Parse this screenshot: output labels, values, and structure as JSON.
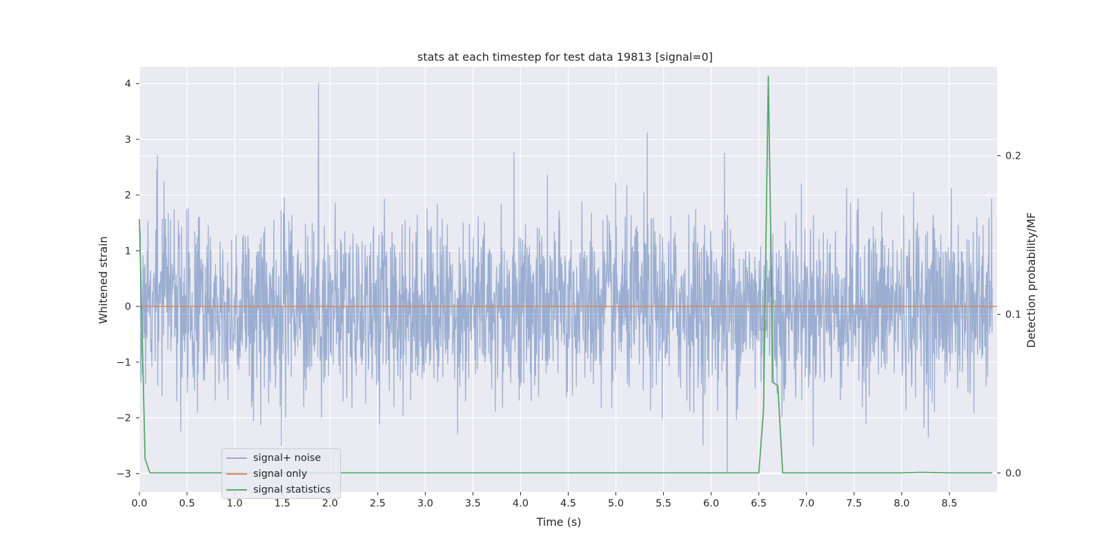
{
  "chart_data": {
    "type": "line",
    "title": "stats at each timestep for test data 19813 [signal=0]",
    "xlabel": "Time (s)",
    "ylabel": "Whitened strain",
    "y2label": "Detection probability/MF",
    "xlim": [
      0.0,
      9.0
    ],
    "ylim": [
      -3.33,
      4.3
    ],
    "y2lim": [
      -0.012,
      0.256
    ],
    "xticks": [
      "0.0",
      "0.5",
      "1.0",
      "1.5",
      "2.0",
      "2.5",
      "3.0",
      "3.5",
      "4.0",
      "4.5",
      "5.0",
      "5.5",
      "6.0",
      "6.5",
      "7.0",
      "7.5",
      "8.0",
      "8.5"
    ],
    "yticks": [
      "4",
      "3",
      "2",
      "1",
      "0",
      "−1",
      "−2",
      "−3"
    ],
    "y2ticks": [
      "0.2",
      "0.1",
      "0.0"
    ],
    "grid": true,
    "legend_position": "lower-left",
    "background_color": "#eaeaf2",
    "series": [
      {
        "name": "signal+ noise",
        "axis": "left",
        "color": "#4c72b0",
        "alpha": 0.5,
        "description_values": "whitened noise, roughly normal with std ~0.8 over 0–9 s",
        "notable_peaks": [
          [
            0.19,
            2.72
          ],
          [
            1.88,
            4.02
          ],
          [
            3.93,
            2.77
          ],
          [
            5.33,
            3.12
          ],
          [
            6.14,
            2.75
          ],
          [
            6.17,
            -3.0
          ],
          [
            1.49,
            -2.5
          ]
        ]
      },
      {
        "name": "signal only",
        "axis": "left",
        "color": "#dd8452",
        "x": [
          0.0,
          9.0
        ],
        "y": [
          0.0,
          0.0
        ]
      },
      {
        "name": "signal statistics",
        "axis": "right",
        "color": "#55a868",
        "x": [
          0.0,
          0.06,
          0.11,
          0.5,
          1.0,
          2.0,
          3.0,
          4.0,
          5.0,
          6.0,
          6.5,
          6.55,
          6.6,
          6.65,
          6.7,
          6.75,
          7.0,
          8.0,
          8.2,
          8.5,
          8.95
        ],
        "y": [
          0.16,
          0.009,
          0.0,
          0.0,
          0.0,
          0.0,
          0.0,
          0.0,
          0.0,
          0.0,
          0.0,
          0.04,
          0.25,
          0.057,
          0.055,
          0.0,
          0.0,
          0.0,
          0.0004,
          0.0,
          0.0
        ]
      }
    ]
  }
}
